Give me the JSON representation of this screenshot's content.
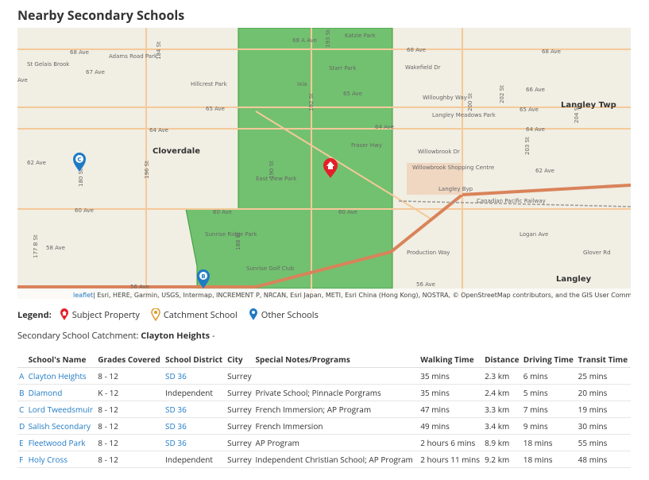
{
  "title": "Nearby Secondary Schools",
  "map": {
    "labels": [
      "68 Ave",
      "Adams Road Park",
      "St Gelais Brook",
      "67 Ave",
      "Ave",
      "68 A Ave",
      "Katzie Park",
      "Starr Park",
      "Ixia",
      "65 Ave",
      "Hillcrest Park",
      "65 Ave",
      "64 Ave",
      "64 Ave",
      "Cloverdale",
      "62 Ave",
      "60 Ave",
      "60 Ave",
      "60 Ave",
      "58 Ave",
      "56 Ave",
      "56 Ave",
      "East View Park",
      "Sunrise Ridge Park",
      "Sunrise Golf Club",
      "Fraser Hwy",
      "68 Ave",
      "68 Ave",
      "Wakefield Dr",
      "Willoughby Way",
      "Langley Meadows Park",
      "66 Ave",
      "65 Ave",
      "64 Ave",
      "Langley Twp",
      "Willowbrook Dr",
      "Willowbrook Shopping Centre",
      "62 Ave",
      "Langley Byp",
      "Canadian Pacific Railway",
      "Production Way",
      "Logan Ave",
      "Glover Rd",
      "Langley",
      "184 St",
      "180 St",
      "177 B St",
      "188 St",
      "190 St",
      "192 St",
      "193 St",
      "196 St",
      "200 St",
      "202 St",
      "203 St",
      "204 St"
    ],
    "markers": [
      "C",
      "B"
    ],
    "attribution_link": "leaflet",
    "attribution": "| Esri, HERE, Garmin, USGS, Intermap, INCREMENT P, NRCAN, Esri Japan, METI, Esri China (Hong Kong), NOSTRA, © OpenStreetMap contributors, and the GIS User Community"
  },
  "legend": {
    "title": "Legend:",
    "items": [
      "Subject Property",
      "Catchment School",
      "Other Schools"
    ]
  },
  "catchment": {
    "label": "Secondary School Catchment:",
    "school": "Clayton Heights",
    "suffix": "-"
  },
  "table": {
    "headers": [
      "School's Name",
      "Grades Covered",
      "School District",
      "City",
      "Special Notes/Programs",
      "Walking Time",
      "Distance",
      "Driving Time",
      "Transit Time"
    ],
    "rows": [
      {
        "letter": "A",
        "name": "Clayton Heights",
        "grades": "8 - 12",
        "district": "SD 36",
        "city": "Surrey",
        "walk": "35 mins",
        "distance": "2.3 km",
        "drive": "6 mins",
        "transit": "25 mins"
      },
      {
        "letter": "B",
        "name": "Diamond",
        "grades": "K - 12",
        "district": "Independent",
        "city": "Surrey",
        "notes": "Private School; Pinnacle Porgrams",
        "walk": "35 mins",
        "distance": "2.4 km",
        "drive": "5 mins",
        "transit": "20 mins"
      },
      {
        "letter": "C",
        "name": "Lord Tweedsmuir",
        "grades": "8 - 12",
        "district": "SD 36",
        "city": "Surrey",
        "notes": "French Immersion; AP Program",
        "walk": "47 mins",
        "distance": "3.3 km",
        "drive": "7 mins",
        "transit": "19 mins"
      },
      {
        "letter": "D",
        "name": "Salish Secondary",
        "grades": "8 - 12",
        "district": "SD 36",
        "city": "Surrey",
        "notes": "French Immersion",
        "walk": "49 mins",
        "distance": "3.4 km",
        "drive": "9 mins",
        "transit": "30 mins"
      },
      {
        "letter": "E",
        "name": "Fleetwood Park",
        "grades": "8 - 12",
        "district": "SD 36",
        "city": "Surrey",
        "notes": "AP Program",
        "walk": "2 hours 6 mins",
        "distance": "8.9 km",
        "drive": "18 mins",
        "transit": "55 mins"
      },
      {
        "letter": "F",
        "name": "Holy Cross",
        "grades": "8 - 12",
        "district": "Independent",
        "city": "Surrey",
        "notes": "Independent Christian School; AP Program",
        "walk": "2 hours 11 mins",
        "distance": "9.2 km",
        "drive": "18 mins",
        "transit": "48 mins"
      }
    ]
  }
}
